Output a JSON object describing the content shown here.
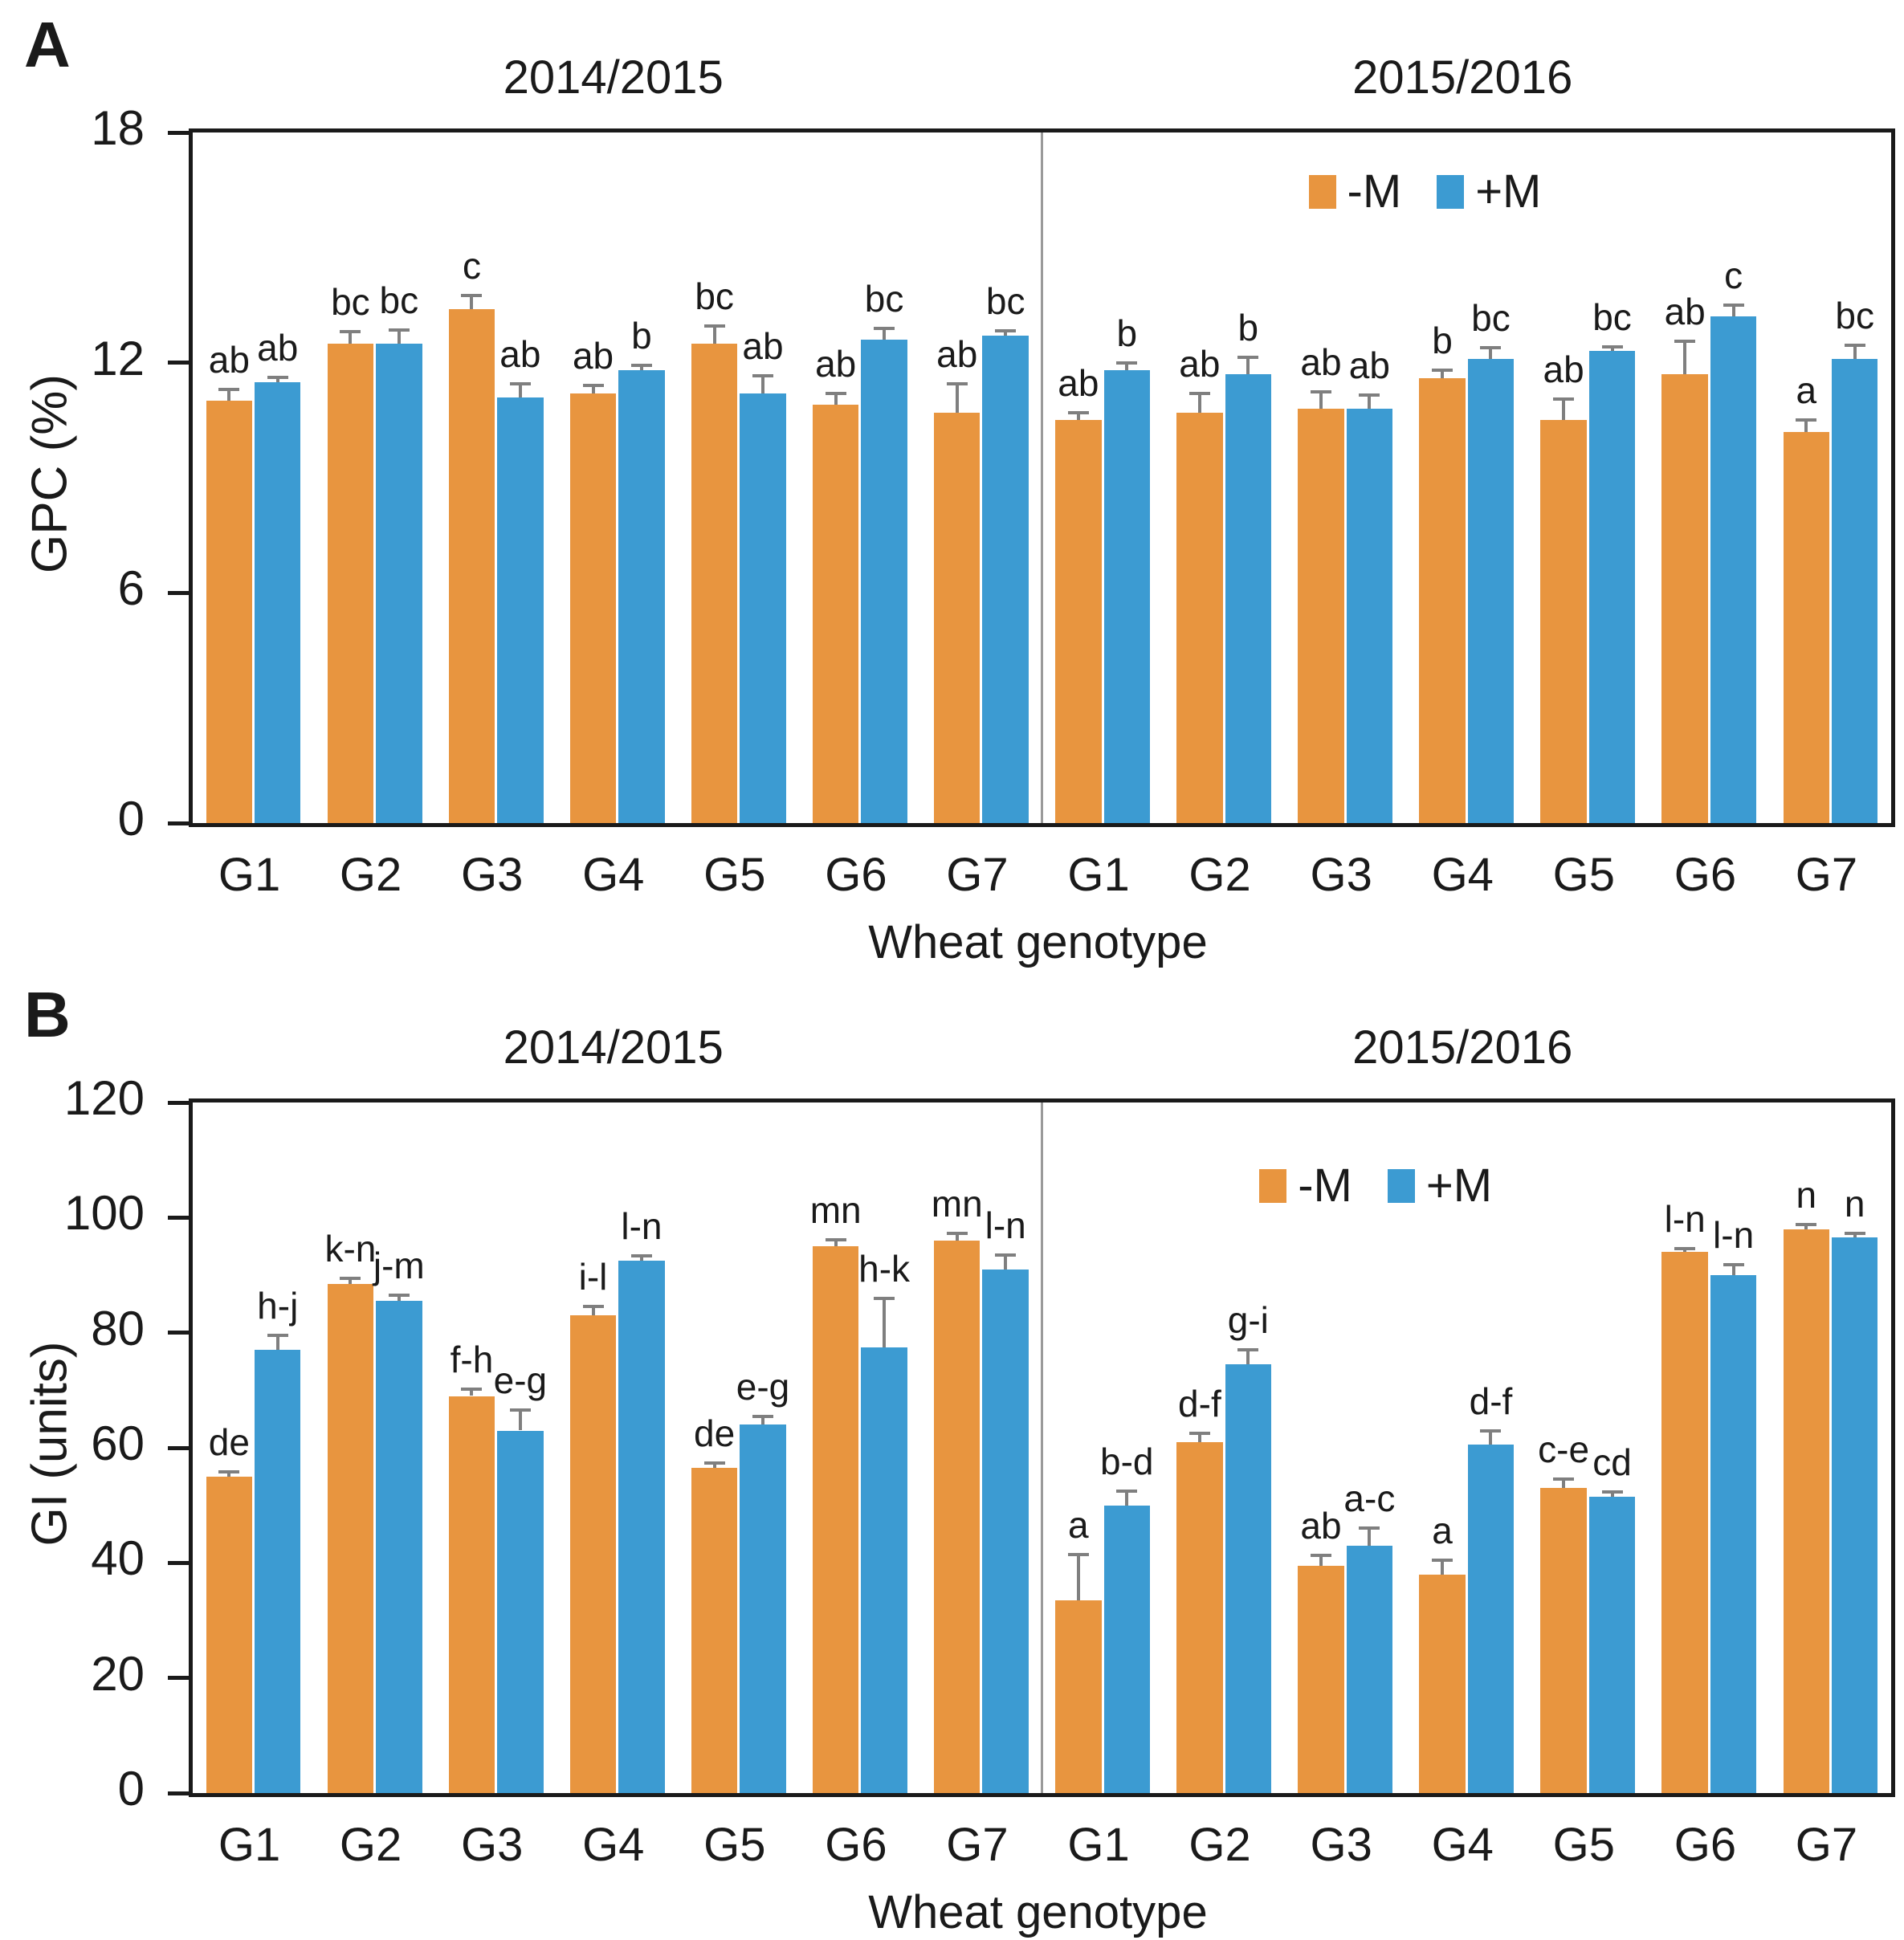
{
  "figure": {
    "background": "#ffffff",
    "colors": {
      "minus_m": "#E8953F",
      "plus_m": "#3C9BD2",
      "error_bar": "#7f7f7f",
      "frame": "#1a1a1a",
      "divider": "#9a9a9a",
      "text": "#1a1a1a"
    }
  },
  "legend": {
    "items": [
      {
        "label": "-M",
        "color": "#E8953F"
      },
      {
        "label": "+M",
        "color": "#3C9BD2"
      }
    ]
  },
  "chart_data": [
    {
      "type": "bar",
      "panel_label": "A",
      "ylabel": "GPC (%)",
      "xlabel": "Wheat genotype",
      "ylim": [
        0,
        18
      ],
      "yticks": [
        0,
        6,
        12,
        18
      ],
      "grid": false,
      "categories": [
        "G1",
        "G2",
        "G3",
        "G4",
        "G5",
        "G6",
        "G7"
      ],
      "seasons": [
        {
          "title": "2014/2015",
          "show_legend": false,
          "series": [
            {
              "name": "-M",
              "color": "#E8953F",
              "values": [
                11.0,
                12.5,
                13.4,
                11.2,
                12.5,
                10.9,
                10.7
              ],
              "errors": [
                0.3,
                0.3,
                0.35,
                0.2,
                0.45,
                0.3,
                0.75
              ],
              "letters": [
                "ab",
                "bc",
                "c",
                "ab",
                "bc",
                "ab",
                "ab"
              ]
            },
            {
              "name": "+M",
              "color": "#3C9BD2",
              "values": [
                11.5,
                12.5,
                11.1,
                11.8,
                11.2,
                12.6,
                12.7
              ],
              "errors": [
                0.12,
                0.35,
                0.35,
                0.12,
                0.45,
                0.3,
                0.12
              ],
              "letters": [
                "ab",
                "bc",
                "ab",
                "b",
                "ab",
                "bc",
                "bc"
              ]
            }
          ]
        },
        {
          "title": "2015/2016",
          "show_legend": true,
          "series": [
            {
              "name": "-M",
              "color": "#E8953F",
              "values": [
                10.5,
                10.7,
                10.8,
                11.6,
                10.5,
                11.7,
                10.2
              ],
              "errors": [
                0.2,
                0.5,
                0.45,
                0.2,
                0.55,
                0.85,
                0.3
              ],
              "letters": [
                "ab",
                "ab",
                "ab",
                "b",
                "ab",
                "ab",
                "a"
              ]
            },
            {
              "name": "+M",
              "color": "#3C9BD2",
              "values": [
                11.8,
                11.7,
                10.8,
                12.1,
                12.3,
                13.2,
                12.1
              ],
              "errors": [
                0.2,
                0.45,
                0.35,
                0.3,
                0.12,
                0.3,
                0.35
              ],
              "letters": [
                "b",
                "b",
                "ab",
                "bc",
                "bc",
                "c",
                "bc"
              ]
            }
          ]
        }
      ]
    },
    {
      "type": "bar",
      "panel_label": "B",
      "ylabel": "GI (units)",
      "xlabel": "Wheat genotype",
      "ylim": [
        0,
        120
      ],
      "yticks": [
        0,
        20,
        40,
        60,
        80,
        100,
        120
      ],
      "grid": false,
      "categories": [
        "G1",
        "G2",
        "G3",
        "G4",
        "G5",
        "G6",
        "G7"
      ],
      "seasons": [
        {
          "title": "2014/2015",
          "show_legend": false,
          "series": [
            {
              "name": "-M",
              "color": "#E8953F",
              "values": [
                55,
                88.5,
                69,
                83,
                56.5,
                95,
                96
              ],
              "errors": [
                0.8,
                1.0,
                1.2,
                1.5,
                0.8,
                1.2,
                1.2
              ],
              "letters": [
                "de",
                "k-n",
                "f-h",
                "i-l",
                "de",
                "mn",
                "mn"
              ]
            },
            {
              "name": "+M",
              "color": "#3C9BD2",
              "values": [
                77,
                85.5,
                63,
                92.5,
                64,
                77.5,
                91
              ],
              "errors": [
                2.5,
                1.0,
                3.5,
                0.8,
                1.5,
                8.5,
                2.5
              ],
              "letters": [
                "h-j",
                "j-m",
                "e-g",
                "l-n",
                "e-g",
                "h-k",
                "l-n"
              ]
            }
          ]
        },
        {
          "title": "2015/2016",
          "show_legend": true,
          "series": [
            {
              "name": "-M",
              "color": "#E8953F",
              "values": [
                33.5,
                61,
                39.5,
                38,
                53,
                94,
                98
              ],
              "errors": [
                8.0,
                1.5,
                1.8,
                2.5,
                1.5,
                0.6,
                0.8
              ],
              "letters": [
                "a",
                "d-f",
                "ab",
                "a",
                "c-e",
                "l-n",
                "n"
              ]
            },
            {
              "name": "+M",
              "color": "#3C9BD2",
              "values": [
                50,
                74.5,
                43,
                60.5,
                51.5,
                90,
                96.5
              ],
              "errors": [
                2.5,
                2.5,
                3.0,
                2.5,
                0.8,
                1.8,
                0.8
              ],
              "letters": [
                "b-d",
                "g-i",
                "a-c",
                "d-f",
                "cd",
                "l-n",
                "n"
              ]
            }
          ]
        }
      ]
    }
  ]
}
